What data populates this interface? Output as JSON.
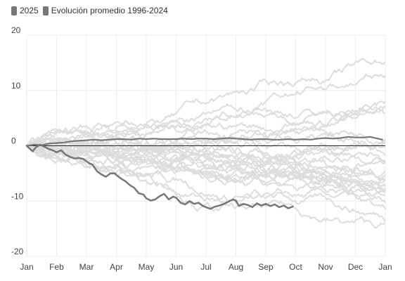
{
  "chart_data": {
    "type": "line",
    "legend": [
      {
        "label": "2025",
        "color": "#777777"
      },
      {
        "label": "Evolución promedio 1996-2024",
        "color": "#777777"
      }
    ],
    "x_ticks": [
      "Jan",
      "Feb",
      "Mar",
      "Apr",
      "May",
      "Jun",
      "Jul",
      "Aug",
      "Sep",
      "Oct",
      "Nov",
      "Dec",
      "Jan"
    ],
    "y_ticks": [
      20,
      10,
      0,
      -10,
      -20
    ],
    "ylim": [
      -20,
      20
    ],
    "xlim": [
      0,
      12
    ],
    "grid": true,
    "legend_position": "top-left",
    "colors": {
      "highlight": "#777777",
      "background_series": "#dddddd",
      "zero_line": "#222222",
      "grid": "#eeeeee"
    },
    "series": [
      {
        "name": "2025",
        "color": "#777777",
        "x": [
          0,
          0.1,
          0.2,
          0.3,
          0.45,
          0.6,
          0.75,
          0.9,
          1.0,
          1.15,
          1.3,
          1.45,
          1.6,
          1.75,
          1.9,
          2.0,
          2.1,
          2.2,
          2.35,
          2.5,
          2.65,
          2.8,
          2.95,
          3.0,
          3.15,
          3.3,
          3.45,
          3.6,
          3.75,
          3.9,
          4.0,
          4.15,
          4.3,
          4.45,
          4.6,
          4.75,
          4.9,
          5.0,
          5.15,
          5.3,
          5.45,
          5.6,
          5.75,
          5.9,
          6.0,
          6.15,
          6.3,
          6.45,
          6.6,
          6.75,
          6.9,
          7.0,
          7.1,
          7.25,
          7.4,
          7.55,
          7.7,
          7.85,
          8.0,
          8.15,
          8.3,
          8.45,
          8.6,
          8.75,
          8.9
        ],
        "values": [
          0,
          -0.5,
          -1.0,
          -0.3,
          0.2,
          -0.2,
          -0.6,
          -0.9,
          -1.2,
          -0.8,
          -1.6,
          -2.0,
          -2.3,
          -2.2,
          -2.4,
          -2.8,
          -3.2,
          -3.4,
          -4.6,
          -5.2,
          -5.6,
          -5.0,
          -5.0,
          -5.3,
          -5.9,
          -6.4,
          -7.1,
          -7.6,
          -8.6,
          -8.8,
          -9.5,
          -9.9,
          -9.7,
          -9.1,
          -8.7,
          -9.7,
          -9.2,
          -9.4,
          -10.3,
          -10.6,
          -10.0,
          -10.5,
          -10.3,
          -10.9,
          -11.1,
          -11.4,
          -11.0,
          -10.8,
          -10.5,
          -10.1,
          -9.7,
          -9.9,
          -10.9,
          -10.5,
          -10.7,
          -11.1,
          -10.4,
          -10.8,
          -10.5,
          -10.9,
          -10.6,
          -11.1,
          -10.8,
          -11.3,
          -11.0
        ]
      },
      {
        "name": "Evolución promedio 1996-2024",
        "color": "#777777",
        "x": [
          0,
          0.25,
          0.5,
          0.75,
          1.0,
          1.25,
          1.5,
          1.75,
          2.0,
          2.25,
          2.5,
          2.75,
          3.0,
          3.25,
          3.5,
          3.75,
          4.0,
          4.25,
          4.5,
          4.75,
          5.0,
          5.25,
          5.5,
          5.75,
          6.0,
          6.25,
          6.5,
          6.75,
          7.0,
          7.25,
          7.5,
          7.75,
          8.0,
          8.25,
          8.5,
          8.75,
          9.0,
          9.25,
          9.5,
          9.75,
          10.0,
          10.25,
          10.5,
          10.75,
          11.0,
          11.25,
          11.5,
          11.75,
          11.9
        ],
        "values": [
          0,
          0.2,
          0.1,
          0.4,
          0.5,
          0.6,
          0.8,
          0.9,
          1.0,
          1.1,
          1.0,
          1.1,
          1.2,
          1.2,
          1.1,
          1.3,
          1.2,
          1.3,
          1.2,
          1.2,
          1.2,
          1.3,
          1.2,
          1.3,
          1.3,
          1.2,
          1.3,
          1.4,
          1.3,
          1.2,
          1.1,
          1.2,
          1.2,
          1.1,
          1.1,
          1.2,
          1.1,
          1.2,
          1.1,
          1.3,
          1.4,
          1.3,
          1.4,
          1.6,
          1.5,
          1.5,
          1.6,
          1.3,
          1.1
        ]
      }
    ]
  }
}
